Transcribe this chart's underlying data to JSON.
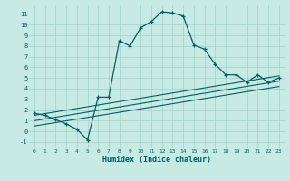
{
  "xlabel": "Humidex (Indice chaleur)",
  "background_color": "#c8eae5",
  "grid_color": "#a0d0cc",
  "line_color": "#006060",
  "xlim": [
    -0.5,
    23.5
  ],
  "ylim": [
    -1.6,
    11.8
  ],
  "xticks": [
    0,
    1,
    2,
    3,
    4,
    5,
    6,
    7,
    8,
    9,
    10,
    11,
    12,
    13,
    14,
    15,
    16,
    17,
    18,
    19,
    20,
    21,
    22,
    23
  ],
  "yticks": [
    -1,
    0,
    1,
    2,
    3,
    4,
    5,
    6,
    7,
    8,
    9,
    10,
    11
  ],
  "main_x": [
    0,
    1,
    2,
    3,
    4,
    5,
    6,
    7,
    8,
    9,
    10,
    11,
    12,
    13,
    14,
    15,
    16,
    17,
    18,
    19,
    20,
    21,
    22,
    23
  ],
  "main_y": [
    1.7,
    1.5,
    1.1,
    0.7,
    0.2,
    -0.8,
    3.2,
    3.2,
    8.5,
    8.0,
    9.7,
    10.3,
    11.2,
    11.1,
    10.8,
    8.1,
    7.7,
    6.3,
    5.3,
    5.3,
    4.6,
    5.3,
    4.6,
    5.0
  ],
  "line1_x": [
    0,
    23
  ],
  "line1_y": [
    0.5,
    4.2
  ],
  "line2_x": [
    0,
    23
  ],
  "line2_y": [
    1.0,
    4.7
  ],
  "line3_x": [
    0,
    23
  ],
  "line3_y": [
    1.5,
    5.2
  ]
}
